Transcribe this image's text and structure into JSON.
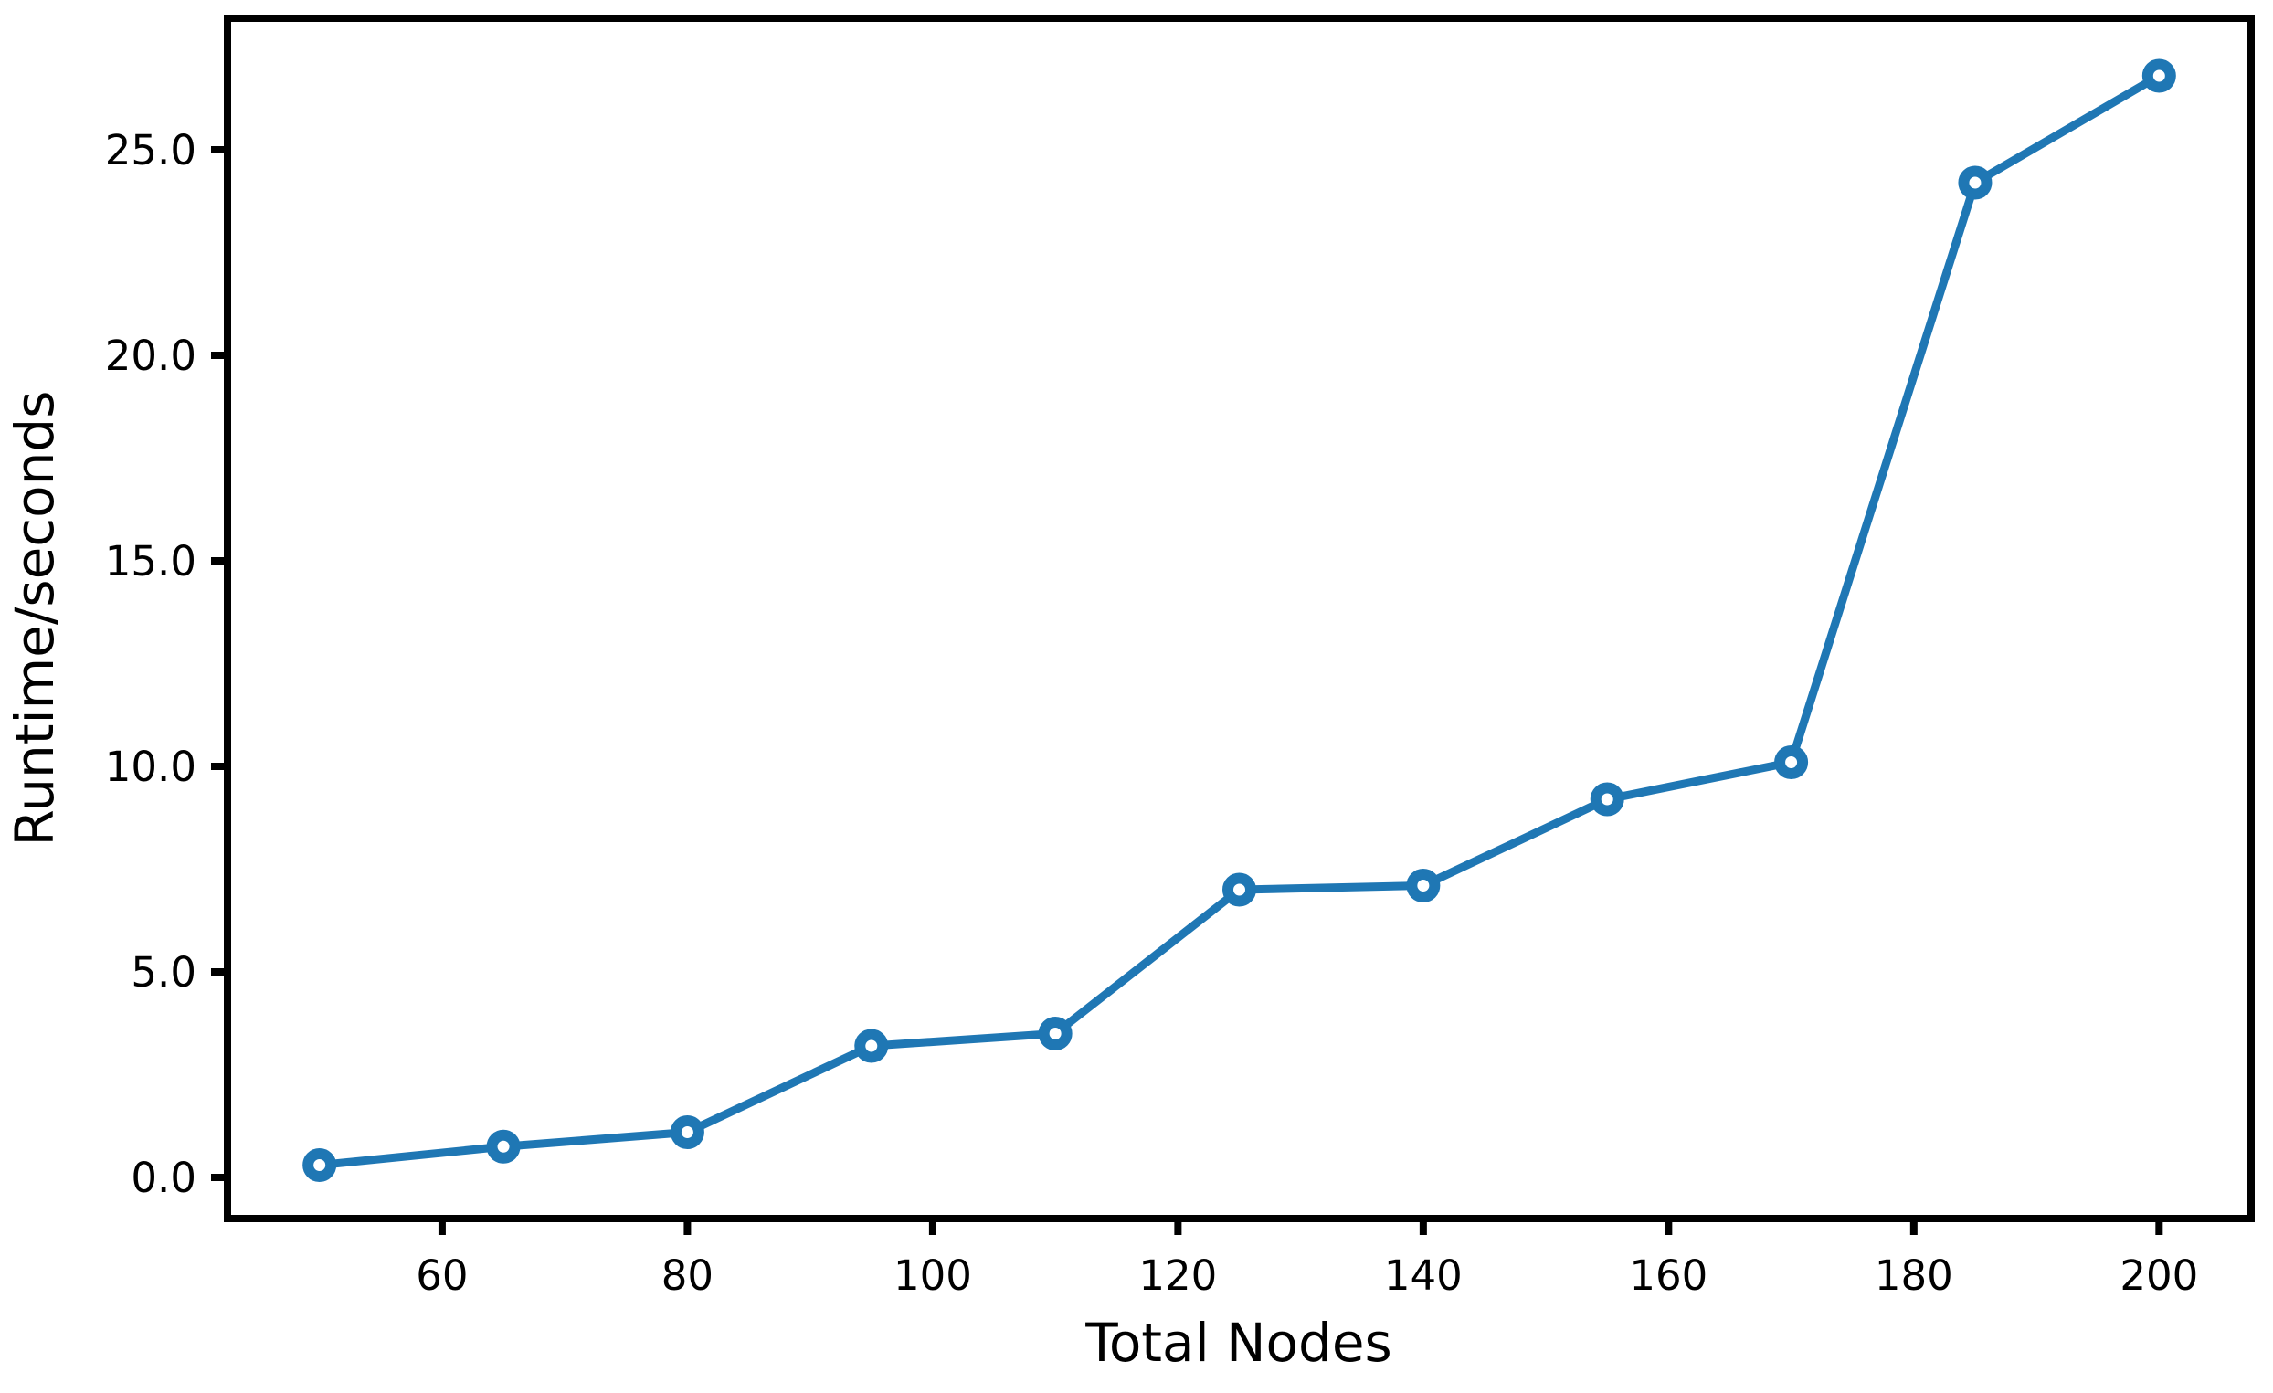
{
  "figure": {
    "background": "#ffffff"
  },
  "chart_data": {
    "type": "line",
    "title": "",
    "xlabel": "Total Nodes",
    "ylabel": "Runtime/seconds",
    "x": [
      50,
      65,
      80,
      95,
      110,
      125,
      140,
      155,
      170,
      185,
      200
    ],
    "series": [
      {
        "name": "runtime",
        "values": [
          0.3,
          0.75,
          1.1,
          3.2,
          3.5,
          7.0,
          7.1,
          9.2,
          10.1,
          24.2,
          26.8
        ]
      }
    ],
    "xlim": [
      42.5,
      207.5
    ],
    "ylim": [
      -1.0,
      28.2
    ],
    "xticks": {
      "values": [
        60,
        80,
        100,
        120,
        140,
        160,
        180,
        200
      ],
      "labels": [
        "60",
        "80",
        "100",
        "120",
        "140",
        "160",
        "180",
        "200"
      ]
    },
    "yticks": {
      "values": [
        0,
        5,
        10,
        15,
        20,
        25
      ],
      "labels": [
        "0.0",
        "5.0",
        "10.0",
        "15.0",
        "20.0",
        "25.0"
      ]
    },
    "grid": false,
    "legend": "none",
    "line_color": "#1f77b4",
    "marker": "open-circle",
    "marker_face_color": "#ffffff",
    "axis_color": "#000000"
  }
}
